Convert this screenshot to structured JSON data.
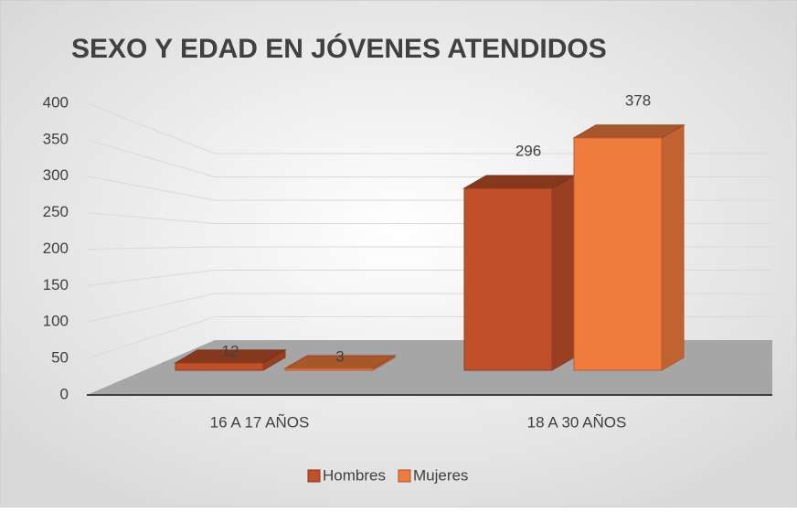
{
  "chart_data": {
    "type": "bar3d",
    "title": "SEXO Y EDAD EN JÓVENES ATENDIDOS",
    "categories": [
      "16 A 17 AÑOS",
      "18 A 30 AÑOS"
    ],
    "series": [
      {
        "name": "Hombres",
        "color": "#c0502a",
        "values": [
          12,
          296
        ]
      },
      {
        "name": "Mujeres",
        "color": "#f07b3f",
        "values": [
          3,
          378
        ]
      }
    ],
    "ylim": [
      0,
      400
    ],
    "yticks": [
      0,
      50,
      100,
      150,
      200,
      250,
      300,
      350,
      400
    ],
    "grid": true,
    "legend": "bottom"
  }
}
